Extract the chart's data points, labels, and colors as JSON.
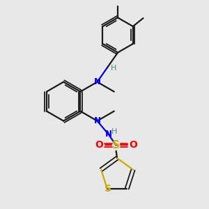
{
  "bg_color": "#e8e8e8",
  "bond_color": "#1a1a1a",
  "N_color": "#0000ee",
  "S_color": "#ccaa00",
  "O_color": "#ff0000",
  "H_color": "#4a8a8a",
  "figsize": [
    3.0,
    3.0
  ],
  "dpi": 100,
  "xlim": [
    0,
    10
  ],
  "ylim": [
    0,
    10
  ]
}
